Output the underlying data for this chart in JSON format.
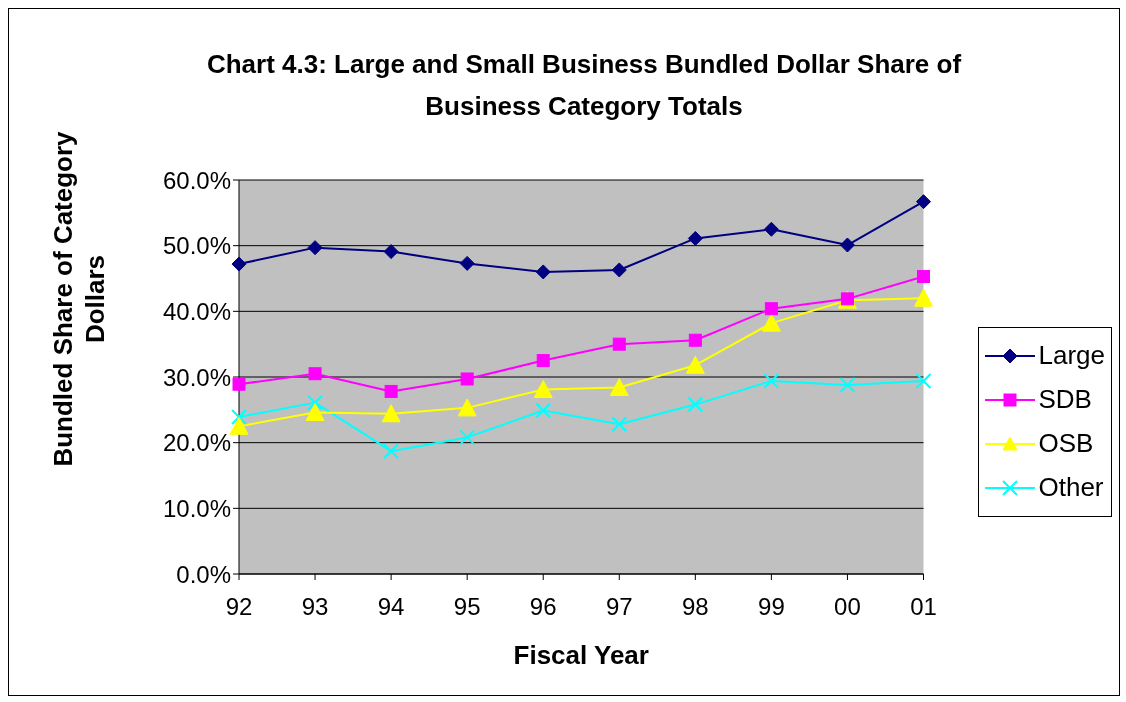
{
  "chart_data": {
    "type": "line",
    "title": "Chart 4.3: Large and Small Business Bundled Dollar Share of Business Category Totals",
    "xlabel": "Fiscal Year",
    "ylabel": "Bundled Share of Category Dollars",
    "categories": [
      "92",
      "93",
      "94",
      "95",
      "96",
      "97",
      "98",
      "99",
      "00",
      "01"
    ],
    "series": [
      {
        "name": "Large",
        "color": "#000080",
        "marker": "diamond",
        "values": [
          47.2,
          49.7,
          49.1,
          47.3,
          46.0,
          46.3,
          51.1,
          52.5,
          50.1,
          56.7
        ]
      },
      {
        "name": "SDB",
        "color": "#ff00ff",
        "marker": "square",
        "values": [
          28.9,
          30.5,
          27.8,
          29.7,
          32.5,
          35.0,
          35.6,
          40.4,
          41.9,
          45.3
        ]
      },
      {
        "name": "OSB",
        "color": "#ffff00",
        "marker": "triangle",
        "values": [
          22.5,
          24.6,
          24.4,
          25.3,
          28.1,
          28.4,
          31.8,
          38.2,
          41.7,
          42.0
        ]
      },
      {
        "name": "Other",
        "color": "#00ffff",
        "marker": "cross",
        "values": [
          23.9,
          26.1,
          18.7,
          20.8,
          24.9,
          22.8,
          25.8,
          29.4,
          28.8,
          29.4
        ]
      }
    ],
    "ylim": [
      0,
      60
    ],
    "yticks": [
      {
        "value": 0,
        "label": "0.0%"
      },
      {
        "value": 10,
        "label": "10.0%"
      },
      {
        "value": 20,
        "label": "20.0%"
      },
      {
        "value": 30,
        "label": "30.0%"
      },
      {
        "value": 40,
        "label": "40.0%"
      },
      {
        "value": 50,
        "label": "50.0%"
      },
      {
        "value": 60,
        "label": "60.0%"
      }
    ],
    "grid": "y",
    "legend": "right"
  }
}
